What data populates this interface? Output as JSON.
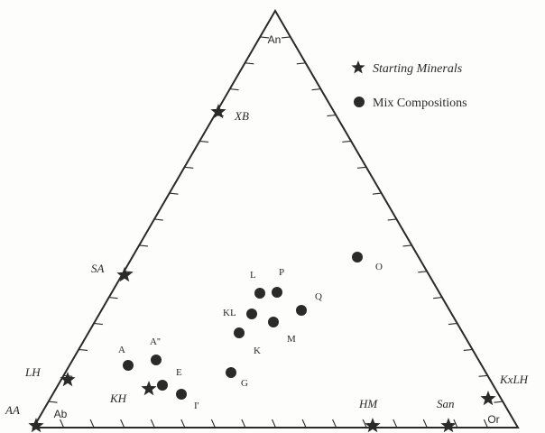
{
  "diagram": {
    "vertices": {
      "top": "An",
      "left": "Ab",
      "right": "Or"
    },
    "legend": {
      "starting": {
        "label": "Starting Minerals",
        "icon": "star-icon"
      },
      "mix": {
        "label": "Mix Compositions",
        "icon": "filled-circle-icon"
      }
    },
    "starting_minerals": [
      "AA",
      "LH",
      "KH",
      "SA",
      "XB",
      "HM",
      "San",
      "KxLH"
    ],
    "mix_compositions": [
      "A",
      "A''",
      "E",
      "I'",
      "G",
      "K",
      "KL",
      "L",
      "P",
      "M",
      "Q",
      "O"
    ],
    "colors": {
      "ink": "#2a2a2a",
      "background": "#fdfdfb"
    }
  }
}
